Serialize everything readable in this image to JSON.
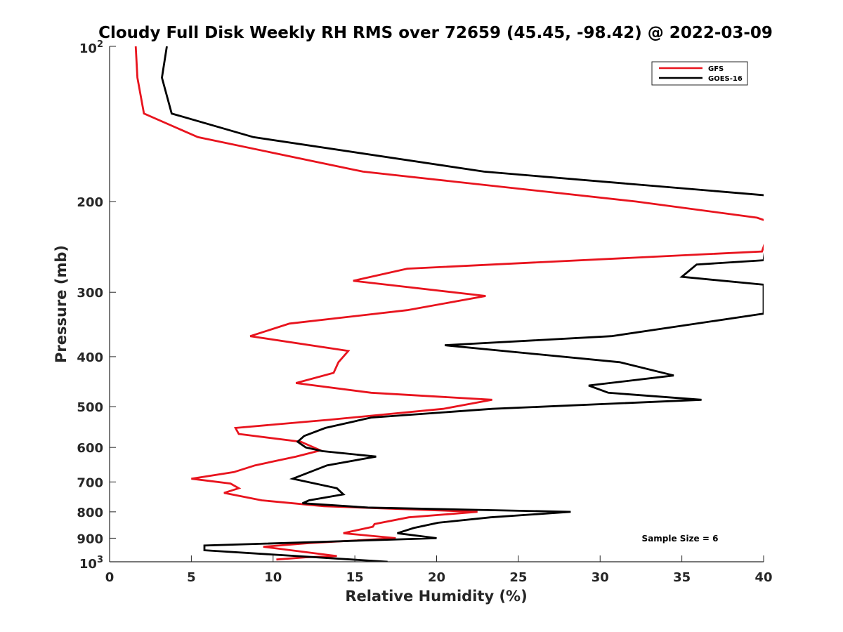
{
  "chart_data": {
    "type": "line",
    "title": "Cloudy Full Disk Weekly RH RMS over 72659 (45.45, -98.42) @ 2022-03-09",
    "xlabel": "Relative Humidity (%)",
    "ylabel": "Pressure (mb)",
    "xlim": [
      0,
      40
    ],
    "ylim": [
      100,
      1000
    ],
    "yscale": "log",
    "y_reversed": true,
    "grid": false,
    "legend_position": "top-right",
    "x_ticks": [
      "0",
      "5",
      "10",
      "15",
      "20",
      "25",
      "30",
      "35",
      "40"
    ],
    "y_ticks": [
      {
        "value": 100,
        "label": "10",
        "exp": "2"
      },
      {
        "value": 200,
        "label": "200"
      },
      {
        "value": 300,
        "label": "300"
      },
      {
        "value": 400,
        "label": "400"
      },
      {
        "value": 500,
        "label": "500"
      },
      {
        "value": 600,
        "label": "600"
      },
      {
        "value": 700,
        "label": "700"
      },
      {
        "value": 800,
        "label": "800"
      },
      {
        "value": 900,
        "label": "900"
      },
      {
        "value": 1000,
        "label": "10",
        "exp": "3"
      }
    ],
    "annotation": "Sample Size = 6",
    "series": [
      {
        "name": "GFS",
        "color": "#e8141e",
        "points": [
          [
            1.6,
            100
          ],
          [
            1.7,
            115
          ],
          [
            2.1,
            135
          ],
          [
            5.4,
            150
          ],
          [
            15.5,
            175
          ],
          [
            32.2,
            200
          ],
          [
            39.6,
            215
          ],
          [
            40.5,
            220
          ],
          [
            39.9,
            250
          ],
          [
            18.2,
            270
          ],
          [
            14.9,
            285
          ],
          [
            23.0,
            305
          ],
          [
            18.2,
            325
          ],
          [
            11.0,
            345
          ],
          [
            8.6,
            365
          ],
          [
            14.6,
            390
          ],
          [
            14.0,
            410
          ],
          [
            13.7,
            430
          ],
          [
            11.4,
            450
          ],
          [
            16.0,
            470
          ],
          [
            23.4,
            485
          ],
          [
            20.4,
            505
          ],
          [
            13.5,
            530
          ],
          [
            7.7,
            550
          ],
          [
            7.9,
            565
          ],
          [
            11.7,
            585
          ],
          [
            12.9,
            608
          ],
          [
            11.4,
            625
          ],
          [
            8.9,
            650
          ],
          [
            7.6,
            670
          ],
          [
            5.0,
            690
          ],
          [
            7.4,
            705
          ],
          [
            7.9,
            720
          ],
          [
            7.0,
            735
          ],
          [
            9.3,
            760
          ],
          [
            13.1,
            780
          ],
          [
            22.5,
            800
          ],
          [
            18.3,
            820
          ],
          [
            16.2,
            845
          ],
          [
            16.1,
            855
          ],
          [
            14.3,
            880
          ],
          [
            17.5,
            900
          ],
          [
            12.2,
            920
          ],
          [
            9.4,
            935
          ],
          [
            13.9,
            975
          ],
          [
            12.0,
            980
          ],
          [
            10.2,
            990
          ]
        ]
      },
      {
        "name": "GOES-16",
        "color": "#000000",
        "points": [
          [
            3.5,
            100
          ],
          [
            3.2,
            115
          ],
          [
            3.8,
            135
          ],
          [
            8.8,
            150
          ],
          [
            22.9,
            175
          ],
          [
            40.5,
            195
          ],
          [
            40.0,
            260
          ],
          [
            35.9,
            265
          ],
          [
            35.0,
            280
          ],
          [
            40.0,
            290
          ],
          [
            40.0,
            330
          ],
          [
            34.6,
            350
          ],
          [
            30.7,
            365
          ],
          [
            20.5,
            380
          ],
          [
            31.2,
            410
          ],
          [
            34.5,
            435
          ],
          [
            29.3,
            455
          ],
          [
            30.5,
            470
          ],
          [
            36.2,
            485
          ],
          [
            23.4,
            505
          ],
          [
            16.0,
            525
          ],
          [
            13.2,
            550
          ],
          [
            11.9,
            570
          ],
          [
            11.5,
            585
          ],
          [
            12.0,
            600
          ],
          [
            13.0,
            610
          ],
          [
            16.3,
            625
          ],
          [
            13.3,
            650
          ],
          [
            11.2,
            690
          ],
          [
            13.9,
            720
          ],
          [
            14.3,
            740
          ],
          [
            12.2,
            760
          ],
          [
            11.8,
            770
          ],
          [
            15.8,
            785
          ],
          [
            28.2,
            800
          ],
          [
            23.3,
            820
          ],
          [
            20.1,
            840
          ],
          [
            18.6,
            860
          ],
          [
            17.6,
            880
          ],
          [
            20.0,
            900
          ],
          [
            5.8,
            930
          ],
          [
            5.8,
            950
          ],
          [
            17.0,
            1000
          ]
        ]
      }
    ]
  }
}
